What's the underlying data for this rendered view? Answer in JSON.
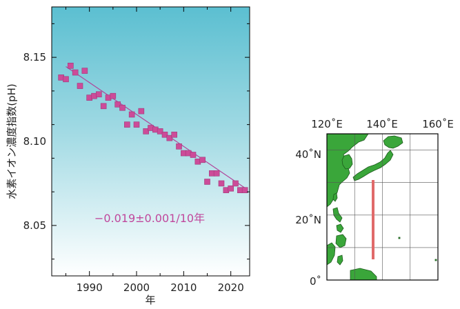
{
  "chart_data": {
    "type": "scatter",
    "title": "",
    "xlabel": "年",
    "ylabel": "水素イオン濃度指数(pH)",
    "xlim": [
      1982,
      2024
    ],
    "ylim": [
      8.02,
      8.18
    ],
    "x_ticks": [
      1990,
      2000,
      2010,
      2020
    ],
    "y_ticks": [
      8.05,
      8.1,
      8.15
    ],
    "x_tick_labels": [
      "1990",
      "2000",
      "2010",
      "2020"
    ],
    "y_tick_labels": [
      "8.05",
      "8.10",
      "8.15"
    ],
    "grid": false,
    "background": "gradient-blue-to-white",
    "marker_color": "#cc4c99",
    "trend_color": "#b0459a",
    "annotation": "−0.019±0.001/10年",
    "trend": {
      "x": [
        1985,
        2023
      ],
      "y": [
        8.1445,
        8.0723
      ]
    },
    "series": [
      {
        "x": [
          1984,
          1985,
          1986,
          1987,
          1988,
          1989,
          1990,
          1991,
          1992,
          1993,
          1994,
          1995,
          1996,
          1997,
          1998,
          1999,
          2000,
          2001,
          2002,
          2003,
          2004,
          2005,
          2006,
          2007,
          2008,
          2009,
          2010,
          2011,
          2012,
          2013,
          2014,
          2015,
          2016,
          2017,
          2018,
          2019,
          2020,
          2021,
          2022,
          2023
        ],
        "y": [
          8.138,
          8.137,
          8.145,
          8.141,
          8.133,
          8.142,
          8.126,
          8.127,
          8.128,
          8.121,
          8.126,
          8.127,
          8.122,
          8.12,
          8.11,
          8.116,
          8.11,
          8.118,
          8.106,
          8.108,
          8.107,
          8.106,
          8.104,
          8.102,
          8.104,
          8.097,
          8.093,
          8.093,
          8.092,
          8.088,
          8.089,
          8.076,
          8.081,
          8.081,
          8.075,
          8.071,
          8.072,
          8.075,
          8.071,
          8.071
        ]
      }
    ]
  },
  "map": {
    "lon_labels": [
      "120˚E",
      "140˚E",
      "160˚E"
    ],
    "lat_labels": [
      "40˚N",
      "20˚N",
      "0˚"
    ],
    "land_color": "#3aa63a",
    "section_color": "#e06a6a"
  }
}
